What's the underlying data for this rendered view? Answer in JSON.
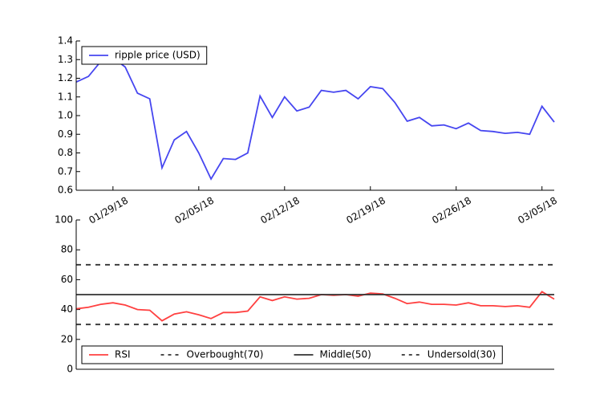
{
  "chart_data": [
    {
      "type": "line",
      "x": [
        "2018-01-26",
        "2018-01-27",
        "2018-01-28",
        "2018-01-29",
        "2018-01-30",
        "2018-01-31",
        "2018-02-01",
        "2018-02-02",
        "2018-02-03",
        "2018-02-04",
        "2018-02-05",
        "2018-02-06",
        "2018-02-07",
        "2018-02-08",
        "2018-02-09",
        "2018-02-10",
        "2018-02-11",
        "2018-02-12",
        "2018-02-13",
        "2018-02-14",
        "2018-02-15",
        "2018-02-16",
        "2018-02-17",
        "2018-02-18",
        "2018-02-19",
        "2018-02-20",
        "2018-02-21",
        "2018-02-22",
        "2018-02-23",
        "2018-02-24",
        "2018-02-25",
        "2018-02-26",
        "2018-02-27",
        "2018-02-28",
        "2018-03-01",
        "2018-03-02",
        "2018-03-03",
        "2018-03-04",
        "2018-03-05",
        "2018-03-06"
      ],
      "series": [
        {
          "name": "ripple price (USD)",
          "color": "#4646f0",
          "values": [
            1.18,
            1.21,
            1.29,
            1.31,
            1.26,
            1.12,
            1.09,
            0.72,
            0.87,
            0.915,
            0.8,
            0.66,
            0.77,
            0.765,
            0.8,
            1.105,
            0.99,
            1.1,
            1.025,
            1.045,
            1.135,
            1.125,
            1.135,
            1.09,
            1.155,
            1.145,
            1.07,
            0.97,
            0.99,
            0.945,
            0.95,
            0.93,
            0.96,
            0.92,
            0.915,
            0.905,
            0.91,
            0.9,
            1.05,
            0.965
          ]
        }
      ],
      "xlim": [
        "2018-01-26",
        "2018-03-06"
      ],
      "xticks": [
        {
          "value": "2018-01-29",
          "label": "01/29/18"
        },
        {
          "value": "2018-02-05",
          "label": "02/05/18"
        },
        {
          "value": "2018-02-12",
          "label": "02/12/18"
        },
        {
          "value": "2018-02-19",
          "label": "02/19/18"
        },
        {
          "value": "2018-02-26",
          "label": "02/26/18"
        },
        {
          "value": "2018-03-05",
          "label": "03/05/18"
        }
      ],
      "ylim": [
        0.6,
        1.4
      ],
      "yticks": [
        0.6,
        0.7,
        0.8,
        0.9,
        {
          "value": 1,
          "label": "1.0"
        },
        1.1,
        1.2,
        1.3,
        1.4
      ],
      "legend": "upper left"
    },
    {
      "type": "line",
      "x": [
        "2018-01-26",
        "2018-01-27",
        "2018-01-28",
        "2018-01-29",
        "2018-01-30",
        "2018-01-31",
        "2018-02-01",
        "2018-02-02",
        "2018-02-03",
        "2018-02-04",
        "2018-02-05",
        "2018-02-06",
        "2018-02-07",
        "2018-02-08",
        "2018-02-09",
        "2018-02-10",
        "2018-02-11",
        "2018-02-12",
        "2018-02-13",
        "2018-02-14",
        "2018-02-15",
        "2018-02-16",
        "2018-02-17",
        "2018-02-18",
        "2018-02-19",
        "2018-02-20",
        "2018-02-21",
        "2018-02-22",
        "2018-02-23",
        "2018-02-24",
        "2018-02-25",
        "2018-02-26",
        "2018-02-27",
        "2018-02-28",
        "2018-03-01",
        "2018-03-02",
        "2018-03-03",
        "2018-03-04",
        "2018-03-05",
        "2018-03-06"
      ],
      "series": [
        {
          "name": "RSI",
          "color": "#ff4040",
          "values": [
            40.5,
            41.5,
            43.5,
            44.5,
            43,
            40,
            39.5,
            32.5,
            37,
            38.5,
            36.5,
            34,
            38,
            38,
            39,
            48.5,
            46,
            48.5,
            47,
            47.5,
            50,
            49.5,
            50,
            49,
            51,
            50.5,
            47.5,
            44,
            45,
            43.5,
            43.5,
            43,
            44.5,
            42.5,
            42.5,
            42,
            42.5,
            41.5,
            52,
            47
          ]
        }
      ],
      "hlines": [
        {
          "name": "Overbought(70)",
          "value": 70,
          "color": "#333333",
          "style": "dashed"
        },
        {
          "name": "Middle(50)",
          "value": 50,
          "color": "#333333",
          "style": "solid"
        },
        {
          "name": "Undersold(30)",
          "value": 30,
          "color": "#333333",
          "style": "dashed"
        }
      ],
      "xlim": [
        "2018-01-26",
        "2018-03-06"
      ],
      "ylim": [
        0,
        100
      ],
      "yticks": [
        0,
        20,
        40,
        60,
        80,
        100
      ],
      "legend": "lower left"
    }
  ]
}
